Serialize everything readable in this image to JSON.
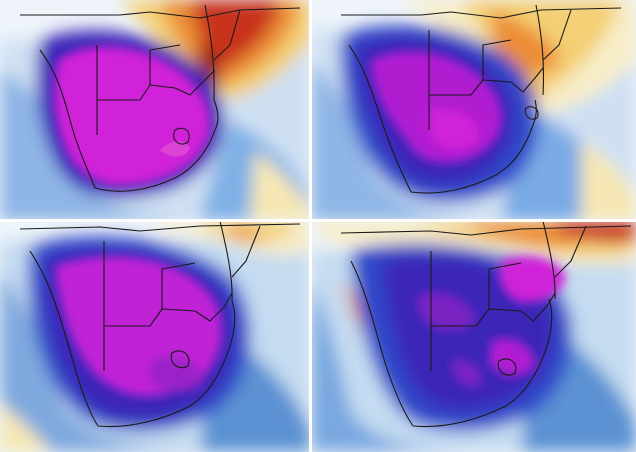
{
  "figure": {
    "panels": [
      {
        "id": "top-left"
      },
      {
        "id": "top-right"
      },
      {
        "id": "bottom-left"
      },
      {
        "id": "bottom-right"
      }
    ]
  },
  "palette": {
    "ocean_white": "#eef4fa",
    "light_blue": "#bcd6ee",
    "mid_blue": "#5b92d3",
    "deep_blue": "#2f49c9",
    "indigo": "#3a25b8",
    "purple": "#7a22c2",
    "magenta": "#d020d8",
    "cream": "#f7edc8",
    "yellow": "#f4cf73",
    "orange": "#ec8d34",
    "red": "#c8331e",
    "dark_red": "#8e1a10",
    "border": "#1a1a1a"
  }
}
